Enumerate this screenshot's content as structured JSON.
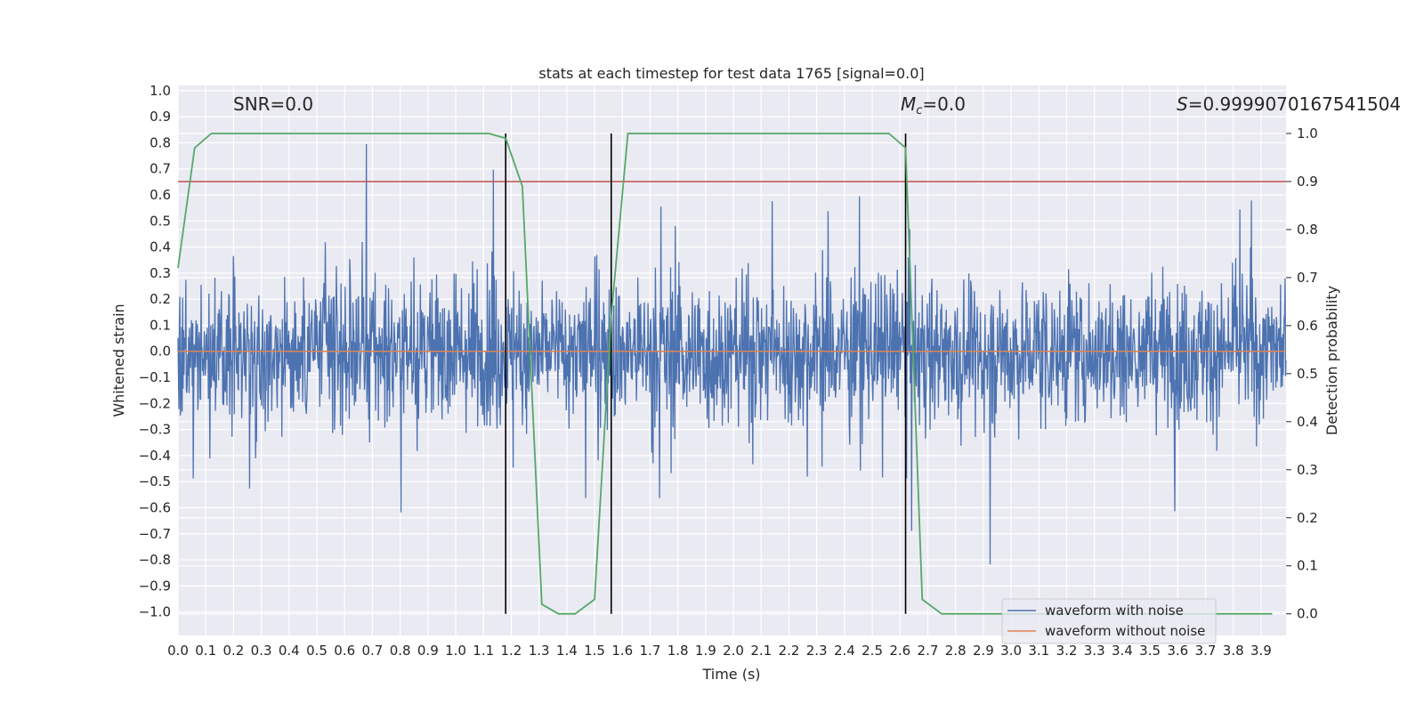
{
  "chart_data": {
    "type": "line",
    "title": "stats at each timestep for test data 1765 [signal=0.0]",
    "xlabel": "Time (s)",
    "ylabel": "Whitened strain",
    "y2label": "Detection probability",
    "xlim": [
      0.0,
      3.99
    ],
    "ylim": [
      -1.09,
      1.02
    ],
    "y2lim": [
      -0.045,
      1.1
    ],
    "xticks": [
      "0.0",
      "0.1",
      "0.2",
      "0.3",
      "0.4",
      "0.5",
      "0.6",
      "0.7",
      "0.8",
      "0.9",
      "1.0",
      "1.1",
      "1.2",
      "1.3",
      "1.4",
      "1.5",
      "1.6",
      "1.7",
      "1.8",
      "1.9",
      "2.0",
      "2.1",
      "2.2",
      "2.3",
      "2.4",
      "2.5",
      "2.6",
      "2.7",
      "2.8",
      "2.9",
      "3.0",
      "3.1",
      "3.2",
      "3.3",
      "3.4",
      "3.5",
      "3.6",
      "3.7",
      "3.8",
      "3.9"
    ],
    "yticks": [
      "1.0",
      "0.9",
      "0.8",
      "0.7",
      "0.6",
      "0.5",
      "0.4",
      "0.3",
      "0.2",
      "0.1",
      "0.0",
      "−0.1",
      "−0.2",
      "−0.3",
      "−0.4",
      "−0.5",
      "−0.6",
      "−0.7",
      "−0.8",
      "−0.9",
      "−1.0"
    ],
    "y2ticks": [
      "0.0",
      "0.1",
      "0.2",
      "0.3",
      "0.4",
      "0.5",
      "0.6",
      "0.7",
      "0.8",
      "0.9",
      "1.0"
    ],
    "grid": true,
    "legend": "lower-right",
    "annotations": {
      "snr": "SNR=0.0",
      "mc_symbol": "M",
      "mc_sub": "c",
      "mc_value": "=0.0",
      "s_symbol": "S",
      "s_value": "=0.9999070167541504"
    },
    "series": [
      {
        "name": "waveform with noise",
        "color": "#4c72b0",
        "kind": "noise",
        "amplitude_range": [
          -0.93,
          0.92
        ]
      },
      {
        "name": "waveform without noise",
        "color": "#dd8452",
        "kind": "constant",
        "value": 0.0
      },
      {
        "color": "#55a868",
        "axis": "right",
        "x": [
          0.0,
          0.06,
          0.12,
          1.12,
          1.18,
          1.24,
          1.31,
          1.37,
          1.43,
          1.5,
          1.56,
          1.62,
          2.56,
          2.62,
          2.68,
          2.75,
          3.94
        ],
        "y": [
          0.72,
          0.97,
          1.0,
          1.0,
          0.99,
          0.89,
          0.02,
          0.0,
          0.0,
          0.03,
          0.62,
          1.0,
          1.0,
          0.97,
          0.03,
          0.0,
          0.0
        ]
      }
    ],
    "threshold": {
      "axis": "right",
      "value": 0.9,
      "color": "#c44e52"
    },
    "vlines": [
      {
        "x": 1.18,
        "ymin": 0.0,
        "ymax": 1.0,
        "color": "#000000"
      },
      {
        "x": 1.56,
        "ymin": 0.0,
        "ymax": 1.0,
        "color": "#000000"
      },
      {
        "x": 2.62,
        "ymin": 0.0,
        "ymax": 1.0,
        "color": "#000000"
      }
    ],
    "colors": {
      "plot_bg": "#eaeaf2",
      "grid": "#ffffff",
      "text": "#262626"
    }
  }
}
